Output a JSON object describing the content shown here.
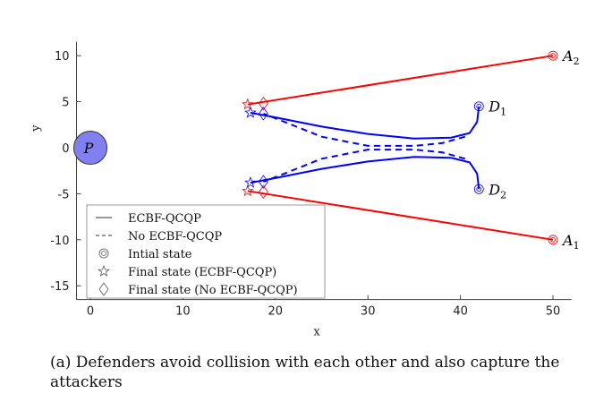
{
  "chart_data": {
    "type": "line",
    "title": "",
    "xlabel": "x",
    "ylabel": "y",
    "xlim": [
      -1.5,
      52
    ],
    "ylim": [
      -16.5,
      11.5
    ],
    "xticks": [
      0,
      10,
      20,
      30,
      40,
      50
    ],
    "yticks": [
      10,
      5,
      0,
      -5,
      -10,
      -15
    ],
    "grid": false,
    "legend_placement": "bottom-left",
    "legend": [
      "ECBF-QCQP",
      "No ECBF-QCQP",
      "Intial state",
      "Final state (ECBF-QCQP)",
      "Final state (No ECBF-QCQP)"
    ],
    "protected_region": {
      "label": "P",
      "center": [
        0,
        0
      ],
      "radius": 1.8,
      "color": "#8080f0"
    },
    "series": [
      {
        "name": "A2",
        "label": "A",
        "sub": "2",
        "color": "#ff0000",
        "style": "solid",
        "x": [
          50,
          17
        ],
        "y": [
          10,
          4.7
        ],
        "final_no": [
          18.7,
          4.8
        ]
      },
      {
        "name": "A1",
        "label": "A",
        "sub": "1",
        "color": "#ff0000",
        "style": "solid",
        "x": [
          50,
          17
        ],
        "y": [
          -10,
          -4.7
        ],
        "final_no": [
          18.7,
          -4.8
        ]
      },
      {
        "name": "D1 ECBF",
        "label": "D",
        "sub": "1",
        "color": "#0000ff",
        "style": "solid",
        "x": [
          42,
          41.8,
          41,
          39,
          35,
          30,
          25,
          20,
          17.3
        ],
        "y": [
          4.5,
          2.8,
          1.6,
          1.1,
          1.0,
          1.5,
          2.3,
          3.3,
          3.8
        ]
      },
      {
        "name": "D2 ECBF",
        "label": "D",
        "sub": "2",
        "color": "#0000ff",
        "style": "solid",
        "x": [
          42,
          41.8,
          41,
          39,
          35,
          30,
          25,
          20,
          17.3
        ],
        "y": [
          -4.5,
          -2.8,
          -1.6,
          -1.1,
          -1.0,
          -1.5,
          -2.3,
          -3.3,
          -3.8
        ]
      },
      {
        "name": "D1 No ECBF",
        "color": "#0000ff",
        "style": "dashed",
        "x": [
          40.5,
          38,
          35,
          30,
          25,
          21,
          18.7
        ],
        "y": [
          1.2,
          0.5,
          0.2,
          0.2,
          1.2,
          2.8,
          3.7
        ]
      },
      {
        "name": "D2 No ECBF",
        "color": "#0000ff",
        "style": "dashed",
        "x": [
          40.5,
          38,
          35,
          30,
          25,
          21,
          18.7
        ],
        "y": [
          -1.2,
          -0.5,
          -0.2,
          -0.2,
          -1.2,
          -2.8,
          -3.7
        ]
      }
    ]
  },
  "caption": "(a) Defenders avoid collision with each other and also capture the attackers"
}
